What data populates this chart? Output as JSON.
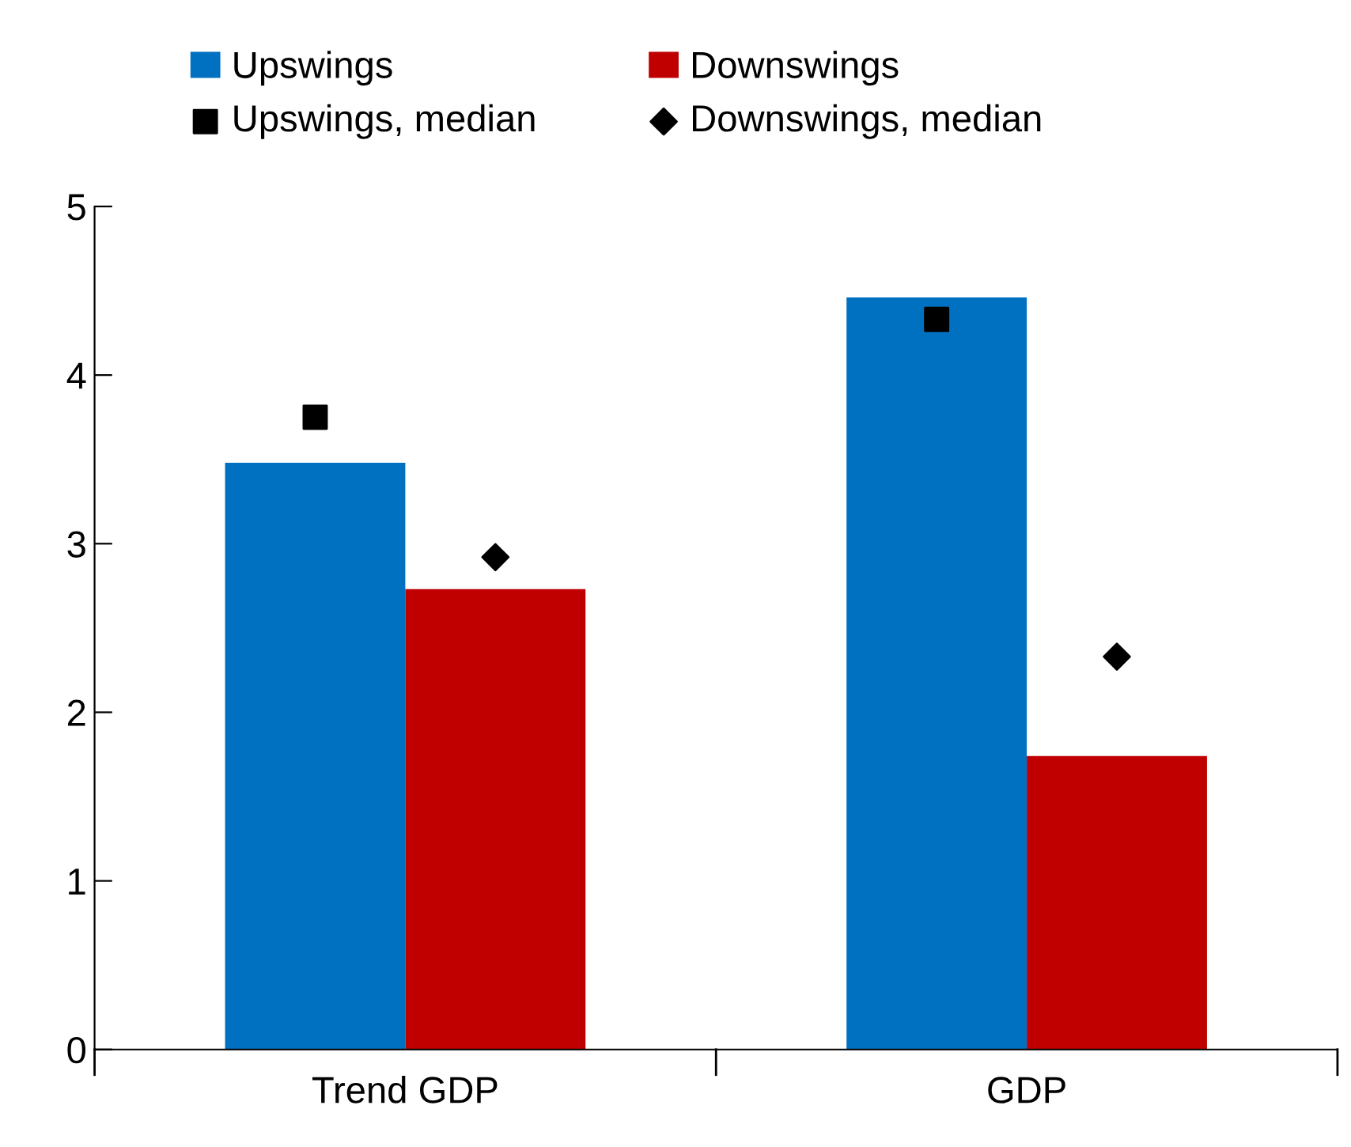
{
  "chart_data": {
    "type": "bar",
    "categories": [
      "Trend GDP",
      "GDP"
    ],
    "series": [
      {
        "name": "Upswings",
        "color": "#0070c0",
        "values": [
          3.48,
          4.46
        ]
      },
      {
        "name": "Downswings",
        "color": "#c00000",
        "values": [
          2.73,
          1.74
        ]
      },
      {
        "name": "Upswings, median",
        "type": "scatter",
        "marker": "square",
        "color": "#000000",
        "x": [
          "Trend GDP",
          "GDP"
        ],
        "values": [
          3.75,
          4.33
        ]
      },
      {
        "name": "Downswings, median",
        "type": "scatter",
        "marker": "diamond",
        "color": "#000000",
        "x": [
          "Trend GDP",
          "GDP"
        ],
        "values": [
          2.92,
          2.33
        ]
      }
    ],
    "ylim": [
      0,
      5
    ],
    "yticks": [
      0,
      1,
      2,
      3,
      4,
      5
    ],
    "grid": false,
    "legend": "top"
  }
}
